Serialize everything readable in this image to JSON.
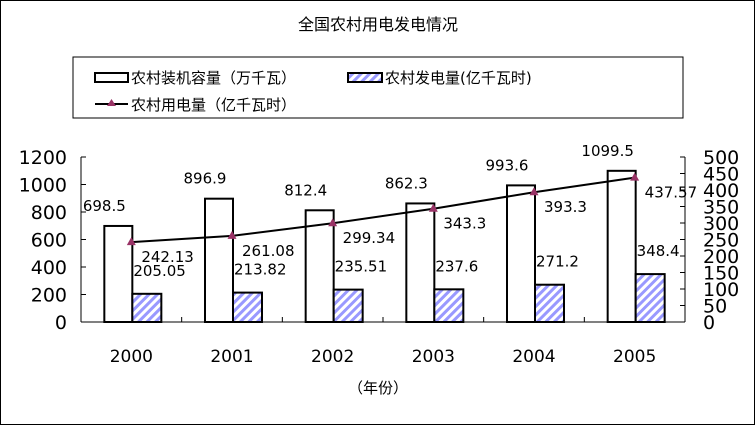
{
  "chart_data": {
    "type": "bar",
    "title": "全国农村用电发电情况",
    "xlabel": "（年份）",
    "categories": [
      "2000",
      "2001",
      "2002",
      "2003",
      "2004",
      "2005"
    ],
    "left_axis": {
      "range": [
        0,
        1200
      ],
      "ticks": [
        "0",
        "200",
        "400",
        "600",
        "800",
        "1000",
        "1200"
      ]
    },
    "right_axis": {
      "range": [
        0,
        500
      ],
      "ticks": [
        "0",
        "50",
        "100",
        "150",
        "200",
        "250",
        "300",
        "350",
        "400",
        "450",
        "500"
      ]
    },
    "legend_position": "top",
    "grid": false,
    "series": [
      {
        "name": "农村装机容量（万千瓦）",
        "type": "bar",
        "axis": "left",
        "color": "#ffffff",
        "values": [
          698.5,
          896.9,
          812.4,
          862.3,
          993.6,
          1099.5
        ],
        "labels": [
          "698.5",
          "896.9",
          "812.4",
          "862.3",
          "993.6",
          "1099.5"
        ]
      },
      {
        "name": "农村发电量(亿千瓦时)",
        "type": "bar",
        "axis": "left",
        "color": "#9999ff",
        "pattern": "diagonal-stripes",
        "values": [
          205.05,
          213.82,
          235.51,
          237.6,
          271.2,
          348.4
        ],
        "labels": [
          "205.05",
          "213.82",
          "235.51",
          "237.6",
          "271.2",
          "348.4"
        ]
      },
      {
        "name": "农村用电量（亿千瓦时）",
        "type": "line",
        "axis": "right",
        "color": "#000000",
        "marker": "triangle",
        "marker_color": "#993366",
        "values": [
          242.13,
          261.08,
          299.34,
          343.3,
          393.3,
          437.57
        ],
        "labels": [
          "242.13",
          "261.08",
          "299.34",
          "343.3",
          "393.3",
          "437.57"
        ]
      }
    ]
  }
}
